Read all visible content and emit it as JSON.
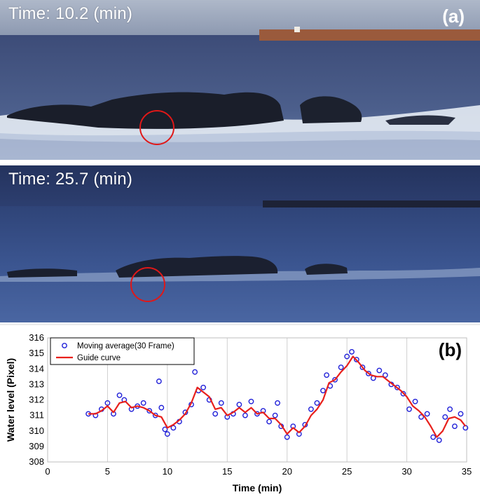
{
  "panel_a": {
    "time_label": "Time: 10.2 (min)",
    "letter": "(a)"
  },
  "panel_a2": {
    "time_label": "Time: 25.7 (min)"
  },
  "panel_b": {
    "letter": "(b)"
  },
  "colors": {
    "marker": "#1f1fd8",
    "guide": "#e8201c",
    "circle": "#e01818"
  },
  "chart_data": {
    "type": "scatter",
    "xlabel": "Time (min)",
    "ylabel": "Water level (Pixel)",
    "xlim": [
      0,
      35
    ],
    "ylim": [
      308,
      316
    ],
    "xticks": [
      0,
      5,
      10,
      15,
      20,
      25,
      30,
      35
    ],
    "yticks": [
      308,
      309,
      310,
      311,
      312,
      313,
      314,
      315,
      316
    ],
    "grid": "vertical",
    "legend_placement": "top-left",
    "series": [
      {
        "name": "Moving average(30 Frame)",
        "style": "open-circle-markers",
        "x": [
          3.4,
          4.0,
          4.5,
          5.0,
          5.5,
          6.0,
          6.4,
          7.0,
          7.5,
          8.0,
          8.5,
          9.0,
          9.3,
          9.5,
          9.8,
          10.0,
          10.5,
          11.0,
          11.5,
          12.0,
          12.3,
          12.6,
          13.0,
          13.5,
          14.0,
          14.5,
          15.0,
          15.5,
          16.0,
          16.5,
          17.0,
          17.5,
          18.0,
          18.5,
          19.0,
          19.2,
          19.5,
          20.0,
          20.5,
          21.0,
          21.5,
          22.0,
          22.5,
          23.0,
          23.3,
          23.6,
          24.0,
          24.5,
          25.0,
          25.4,
          25.8,
          26.3,
          26.8,
          27.2,
          27.7,
          28.2,
          28.7,
          29.2,
          29.7,
          30.2,
          30.7,
          31.2,
          31.7,
          32.2,
          32.7,
          33.2,
          33.6,
          34.0,
          34.5,
          34.9
        ],
        "y": [
          311.1,
          311.0,
          311.4,
          311.8,
          311.1,
          312.3,
          312.0,
          311.4,
          311.6,
          311.8,
          311.3,
          311.0,
          313.2,
          311.5,
          310.1,
          309.8,
          310.2,
          310.6,
          311.2,
          311.7,
          313.8,
          312.6,
          312.8,
          312.0,
          311.1,
          311.8,
          310.9,
          311.1,
          311.7,
          311.0,
          311.9,
          311.1,
          311.3,
          310.6,
          311.0,
          311.8,
          310.3,
          309.6,
          310.3,
          309.8,
          310.4,
          311.4,
          311.8,
          312.6,
          313.6,
          312.9,
          313.3,
          314.1,
          314.8,
          315.1,
          314.6,
          314.1,
          313.7,
          313.4,
          313.9,
          313.6,
          313.0,
          312.8,
          312.4,
          311.4,
          311.9,
          310.9,
          311.1,
          309.6,
          309.4,
          310.9,
          311.4,
          310.3,
          311.1,
          310.2
        ]
      },
      {
        "name": "Guide curve",
        "style": "line",
        "x": [
          3.4,
          4.0,
          4.5,
          5.0,
          5.5,
          6.0,
          6.5,
          7.0,
          7.5,
          8.0,
          8.5,
          9.0,
          9.5,
          10.0,
          10.5,
          11.0,
          11.5,
          12.0,
          12.5,
          13.0,
          13.5,
          14.0,
          14.5,
          15.0,
          15.5,
          16.0,
          16.5,
          17.0,
          17.5,
          18.0,
          18.5,
          19.0,
          19.5,
          20.0,
          20.5,
          21.0,
          21.5,
          22.0,
          22.5,
          23.0,
          23.5,
          24.0,
          24.5,
          25.0,
          25.5,
          26.0,
          26.5,
          27.0,
          27.5,
          28.0,
          28.5,
          29.0,
          29.5,
          30.0,
          30.5,
          31.0,
          31.5,
          32.0,
          32.5,
          33.0,
          33.5,
          34.0,
          34.5,
          34.9
        ],
        "y": [
          311.1,
          311.1,
          311.3,
          311.6,
          311.2,
          311.8,
          311.9,
          311.5,
          311.6,
          311.5,
          311.3,
          311.0,
          310.9,
          310.2,
          310.4,
          310.7,
          311.1,
          311.8,
          312.8,
          312.5,
          312.2,
          311.4,
          311.5,
          311.0,
          311.2,
          311.5,
          311.2,
          311.5,
          311.1,
          311.2,
          310.8,
          310.8,
          310.4,
          309.8,
          310.2,
          309.9,
          310.3,
          311.0,
          311.4,
          312.0,
          313.1,
          313.3,
          313.8,
          314.2,
          314.8,
          314.4,
          313.9,
          313.6,
          313.5,
          313.5,
          313.2,
          312.9,
          312.6,
          312.2,
          311.6,
          311.3,
          310.9,
          310.3,
          309.6,
          310.0,
          310.8,
          310.9,
          310.7,
          310.3
        ]
      }
    ]
  }
}
